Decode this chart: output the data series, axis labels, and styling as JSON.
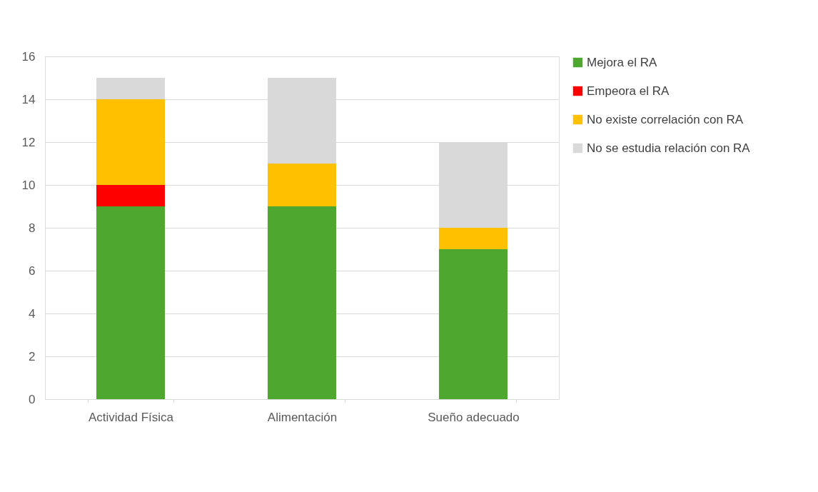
{
  "chart_data": {
    "type": "bar",
    "stacked": true,
    "categories": [
      "Actividad Física",
      "Alimentación",
      "Sueño adecuado"
    ],
    "series": [
      {
        "name": "Mejora el RA",
        "color": "#4ea72e",
        "values": [
          9,
          9,
          7
        ]
      },
      {
        "name": "Empeora el RA",
        "color": "#ff0000",
        "values": [
          1,
          0,
          0
        ]
      },
      {
        "name": "No existe correlación con RA",
        "color": "#ffc000",
        "values": [
          4,
          2,
          1
        ]
      },
      {
        "name": "No se estudia relación con RA",
        "color": "#d9d9d9",
        "values": [
          1,
          4,
          4
        ]
      }
    ],
    "ylim": [
      0,
      16
    ],
    "yticks": [
      0,
      2,
      4,
      6,
      8,
      10,
      12,
      14,
      16
    ],
    "grid": "y",
    "legend": "right"
  }
}
